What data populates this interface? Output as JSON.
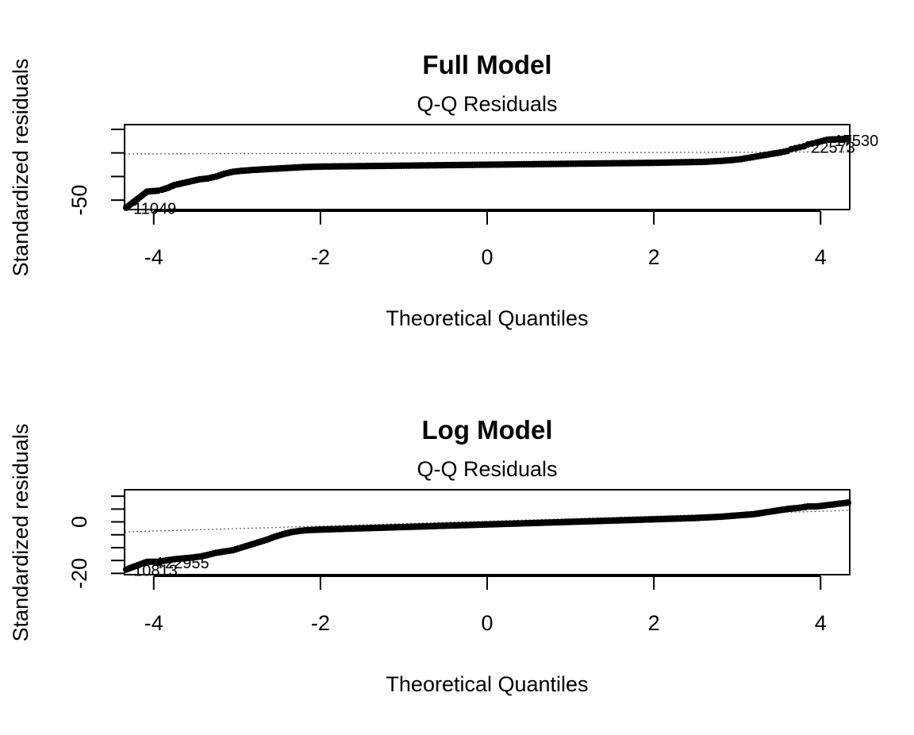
{
  "chart_data": [
    {
      "type": "scatter",
      "title": "Full Model",
      "subtitle": "Q-Q Residuals",
      "xlabel": "Theoretical Quantiles",
      "ylabel": "Standardized residuals",
      "xlim": [
        -4.35,
        4.35
      ],
      "ylim": [
        -60,
        30
      ],
      "x_ticks": [
        -4,
        -2,
        0,
        2,
        4
      ],
      "y_ticks": [
        -50,
        -25,
        0,
        25
      ],
      "y_tick_labels": [
        {
          "value": -50,
          "label": "-50"
        }
      ],
      "grid": false,
      "reference_line": {
        "slope": 0.25,
        "intercept": 0
      },
      "series": [
        {
          "x": [
            -4.33,
            -4.08,
            -3.95,
            -3.9,
            -3.83,
            -3.75,
            -3.65,
            -3.55,
            -3.45,
            -3.35,
            -3.25,
            -3.15,
            -3.05,
            -2.95,
            -2.8,
            -2.6,
            -2.4,
            -2.2,
            -2.0,
            -1.5,
            -1.0,
            -0.5,
            0.0,
            0.5,
            1.0,
            1.5,
            2.0,
            2.3,
            2.6,
            2.8,
            2.95,
            3.05,
            3.15,
            3.25,
            3.35,
            3.45,
            3.52,
            3.6,
            3.65,
            3.7,
            3.75,
            3.8,
            3.85,
            3.9,
            3.95,
            4.08,
            4.33
          ],
          "y": [
            -58,
            -41,
            -40,
            -39,
            -37,
            -34,
            -32,
            -30,
            -28,
            -27,
            -25,
            -22,
            -20,
            -19,
            -18,
            -17,
            -16,
            -15,
            -14.5,
            -14,
            -13.5,
            -13,
            -12.5,
            -12,
            -11.5,
            -11,
            -10.5,
            -10,
            -9.5,
            -8.5,
            -7.5,
            -6.5,
            -5,
            -3.5,
            -2,
            -0.5,
            0.5,
            2,
            4,
            5,
            6,
            7,
            9,
            10,
            11,
            14,
            15
          ]
        }
      ],
      "annotations": [
        {
          "label": "11049",
          "x": -4.33,
          "y": -58
        },
        {
          "label": "22573",
          "x": 3.8,
          "y": 7
        },
        {
          "label": "17530",
          "x": 4.08,
          "y": 14
        }
      ]
    },
    {
      "type": "scatter",
      "title": "Log Model",
      "subtitle": "Q-Q Residuals",
      "xlabel": "Theoretical Quantiles",
      "ylabel": "Standardized residuals",
      "xlim": [
        -4.35,
        4.35
      ],
      "ylim": [
        -20.5,
        12.5
      ],
      "x_ticks": [
        -4,
        -2,
        0,
        2,
        4
      ],
      "y_ticks": [
        -20,
        -15,
        -10,
        -5,
        0,
        5,
        10
      ],
      "y_tick_labels": [
        {
          "value": -20,
          "label": "-20"
        },
        {
          "value": 0,
          "label": "0"
        }
      ],
      "grid": false,
      "reference_line": {
        "slope": 0.96,
        "intercept": 0.28
      },
      "series": [
        {
          "x": [
            -4.33,
            -4.08,
            -3.95,
            -3.85,
            -3.75,
            -3.65,
            -3.55,
            -3.45,
            -3.35,
            -3.25,
            -3.15,
            -3.05,
            -2.95,
            -2.85,
            -2.75,
            -2.65,
            -2.55,
            -2.45,
            -2.35,
            -2.25,
            -2.15,
            -2.0,
            -1.5,
            -1.0,
            -0.5,
            0.0,
            0.5,
            1.0,
            1.5,
            2.0,
            2.5,
            2.8,
            3.0,
            3.2,
            3.4,
            3.6,
            3.75,
            3.85,
            3.95,
            4.08,
            4.33
          ],
          "y": [
            -18.5,
            -15.5,
            -15.5,
            -15,
            -14.5,
            -14.2,
            -13.9,
            -13.5,
            -12.8,
            -12,
            -11.5,
            -11,
            -10,
            -9,
            -8,
            -7,
            -5.8,
            -4.8,
            -4,
            -3.5,
            -3.2,
            -3,
            -2.5,
            -2,
            -1.5,
            -1,
            -0.5,
            0,
            0.5,
            1,
            1.5,
            2,
            2.5,
            3,
            4,
            5,
            5.5,
            6,
            6,
            6.5,
            7.5
          ]
        }
      ],
      "annotations": [
        {
          "label": "10813",
          "x": -4.33,
          "y": -18.5
        },
        {
          "label": "22955",
          "x": -3.95,
          "y": -15.5
        },
        {
          "label": "4",
          "x": -4.08,
          "y": -15.5
        }
      ]
    }
  ]
}
